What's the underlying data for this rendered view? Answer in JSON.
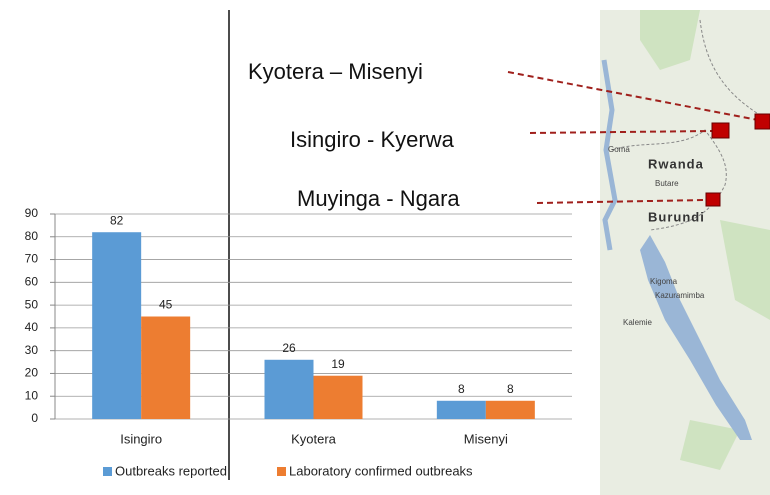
{
  "chart_data": {
    "type": "bar",
    "categories": [
      "Isingiro",
      "Kyotera",
      "Misenyi"
    ],
    "series": [
      {
        "name": "Outbreaks reported",
        "color": "#5b9bd5",
        "values": [
          82,
          26,
          8
        ]
      },
      {
        "name": "Laboratory confirmed outbreaks",
        "color": "#ed7d31",
        "values": [
          45,
          19,
          8
        ]
      }
    ],
    "ylim": [
      0,
      90
    ],
    "yticks": [
      0,
      10,
      20,
      30,
      40,
      50,
      60,
      70,
      80,
      90
    ],
    "grid": true
  },
  "map": {
    "routes": [
      "Kyotera – Misenyi",
      "Isingiro - Kyerwa",
      "Muyinga - Ngara"
    ],
    "countries": [
      "Rwanda",
      "Burundi"
    ],
    "places": [
      "Goma",
      "Butare",
      "Kigoma",
      "Kazuramimba",
      "Kalemie"
    ]
  }
}
